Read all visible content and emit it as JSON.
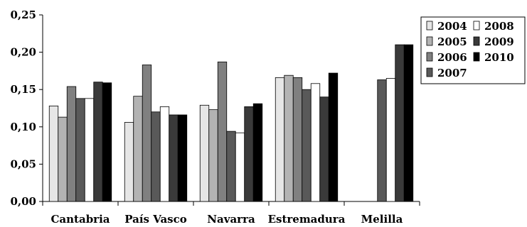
{
  "chart_data": {
    "type": "bar",
    "categories": [
      "Cantabria",
      "País Vasco",
      "Navarra",
      "Estremadura",
      "Melilla"
    ],
    "series": [
      {
        "name": "2004",
        "color": "#e6e6e6",
        "values": [
          0.128,
          0.106,
          0.129,
          0.166,
          null
        ]
      },
      {
        "name": "2005",
        "color": "#b3b3b3",
        "values": [
          0.113,
          0.141,
          0.123,
          0.169,
          null
        ]
      },
      {
        "name": "2006",
        "color": "#808080",
        "values": [
          0.154,
          0.183,
          0.187,
          0.166,
          null
        ]
      },
      {
        "name": "2007",
        "color": "#595959",
        "values": [
          0.138,
          0.12,
          0.094,
          0.15,
          0.163
        ]
      },
      {
        "name": "2008",
        "color": "#ffffff",
        "values": [
          0.138,
          0.127,
          0.092,
          0.158,
          0.165
        ]
      },
      {
        "name": "2009",
        "color": "#3a3a3a",
        "values": [
          0.16,
          0.116,
          0.127,
          0.14,
          0.21
        ]
      },
      {
        "name": "2010",
        "color": "#000000",
        "values": [
          0.159,
          0.116,
          0.131,
          0.172,
          0.21
        ]
      }
    ],
    "ylim": [
      0,
      0.25
    ],
    "yticks": [
      "0,00",
      "0,05",
      "0,10",
      "0,15",
      "0,20",
      "0,25"
    ],
    "ytick_values": [
      0,
      0.05,
      0.1,
      0.15,
      0.2,
      0.25
    ],
    "grid": false,
    "legend_position": "top-right"
  }
}
